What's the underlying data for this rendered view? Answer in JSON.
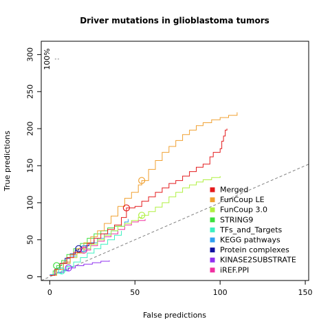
{
  "chart_data": {
    "type": "line",
    "title": "Driver mutations in glioblastoma tumors",
    "xlabel": "False predictions",
    "ylabel": "True predictions",
    "xlim": [
      -5,
      152
    ],
    "ylim": [
      -5,
      318
    ],
    "x_ticks": [
      "0",
      "50",
      "100",
      "150"
    ],
    "y_ticks": [
      "0",
      "50",
      "100",
      "150",
      "200",
      "250",
      "300"
    ],
    "annotation": "100%",
    "legend": {
      "placement": "right"
    },
    "diagonal": {
      "color": "#808080",
      "dash": true
    },
    "series": [
      {
        "name": "Merged",
        "color": "#e41a1c",
        "marker": [
          45,
          93
        ],
        "points": [
          [
            0,
            2
          ],
          [
            3,
            10
          ],
          [
            6,
            18
          ],
          [
            10,
            26
          ],
          [
            14,
            33
          ],
          [
            18,
            40
          ],
          [
            22,
            45
          ],
          [
            26,
            52
          ],
          [
            30,
            58
          ],
          [
            34,
            64
          ],
          [
            38,
            70
          ],
          [
            42,
            80
          ],
          [
            45,
            93
          ],
          [
            50,
            95
          ],
          [
            54,
            102
          ],
          [
            58,
            108
          ],
          [
            62,
            114
          ],
          [
            66,
            120
          ],
          [
            70,
            126
          ],
          [
            74,
            130
          ],
          [
            78,
            136
          ],
          [
            82,
            142
          ],
          [
            86,
            148
          ],
          [
            90,
            152
          ],
          [
            94,
            162
          ],
          [
            96,
            168
          ],
          [
            100,
            173
          ],
          [
            101,
            183
          ],
          [
            102,
            190
          ],
          [
            103,
            198
          ],
          [
            104,
            200
          ]
        ]
      },
      {
        "name": "FunCoup LE",
        "color": "#f0a030",
        "marker": [
          54,
          130
        ],
        "points": [
          [
            0,
            2
          ],
          [
            4,
            10
          ],
          [
            8,
            20
          ],
          [
            12,
            30
          ],
          [
            16,
            38
          ],
          [
            20,
            46
          ],
          [
            24,
            54
          ],
          [
            28,
            62
          ],
          [
            32,
            72
          ],
          [
            36,
            82
          ],
          [
            40,
            95
          ],
          [
            44,
            106
          ],
          [
            48,
            114
          ],
          [
            52,
            124
          ],
          [
            54,
            130
          ],
          [
            58,
            145
          ],
          [
            62,
            157
          ],
          [
            66,
            168
          ],
          [
            70,
            176
          ],
          [
            74,
            184
          ],
          [
            78,
            192
          ],
          [
            82,
            198
          ],
          [
            86,
            204
          ],
          [
            90,
            208
          ],
          [
            95,
            212
          ],
          [
            100,
            215
          ],
          [
            105,
            218
          ],
          [
            110,
            222
          ]
        ]
      },
      {
        "name": "FunCoup 3.0",
        "color": "#b0f040",
        "marker": [
          54,
          83
        ],
        "points": [
          [
            0,
            2
          ],
          [
            4,
            10
          ],
          [
            8,
            18
          ],
          [
            12,
            26
          ],
          [
            16,
            32
          ],
          [
            20,
            38
          ],
          [
            24,
            44
          ],
          [
            28,
            50
          ],
          [
            32,
            56
          ],
          [
            36,
            62
          ],
          [
            40,
            68
          ],
          [
            44,
            72
          ],
          [
            48,
            76
          ],
          [
            52,
            80
          ],
          [
            54,
            83
          ],
          [
            58,
            88
          ],
          [
            62,
            94
          ],
          [
            66,
            100
          ],
          [
            70,
            108
          ],
          [
            74,
            114
          ],
          [
            78,
            120
          ],
          [
            82,
            124
          ],
          [
            86,
            128
          ],
          [
            90,
            131
          ],
          [
            95,
            134
          ],
          [
            100,
            136
          ]
        ]
      },
      {
        "name": "STRING9",
        "color": "#3ce03c",
        "marker": [
          4,
          15
        ],
        "points": [
          [
            0,
            2
          ],
          [
            2,
            8
          ],
          [
            4,
            15
          ],
          [
            7,
            22
          ],
          [
            10,
            30
          ],
          [
            14,
            38
          ],
          [
            18,
            45
          ],
          [
            22,
            52
          ],
          [
            26,
            58
          ],
          [
            30,
            62
          ],
          [
            34,
            66
          ],
          [
            38,
            68
          ],
          [
            42,
            70
          ]
        ]
      },
      {
        "name": "TFs_and_Targets",
        "color": "#3cf0c0",
        "marker": [
          7,
          8
        ],
        "points": [
          [
            0,
            2
          ],
          [
            3,
            5
          ],
          [
            7,
            8
          ],
          [
            10,
            14
          ],
          [
            14,
            20
          ],
          [
            18,
            26
          ],
          [
            22,
            32
          ],
          [
            26,
            38
          ],
          [
            30,
            44
          ],
          [
            34,
            50
          ],
          [
            38,
            56
          ],
          [
            42,
            62
          ]
        ]
      },
      {
        "name": "KEGG pathways",
        "color": "#30a0f0",
        "marker": [
          20,
          38
        ],
        "points": [
          [
            0,
            3
          ],
          [
            4,
            12
          ],
          [
            8,
            20
          ],
          [
            12,
            28
          ],
          [
            16,
            34
          ],
          [
            20,
            38
          ],
          [
            24,
            46
          ],
          [
            28,
            52
          ],
          [
            32,
            58
          ],
          [
            36,
            62
          ],
          [
            40,
            68
          ],
          [
            44,
            74
          ],
          [
            46,
            78
          ]
        ]
      },
      {
        "name": "Protein complexes",
        "color": "#1010a0",
        "marker": [
          17,
          38
        ],
        "points": [
          [
            0,
            2
          ],
          [
            3,
            10
          ],
          [
            6,
            18
          ],
          [
            9,
            25
          ],
          [
            12,
            31
          ],
          [
            15,
            36
          ],
          [
            17,
            38
          ],
          [
            20,
            42
          ],
          [
            23,
            46
          ],
          [
            26,
            50
          ]
        ]
      },
      {
        "name": "KINASE2SUBSTRATE",
        "color": "#9030f0",
        "marker": [
          11,
          12
        ],
        "points": [
          [
            0,
            2
          ],
          [
            4,
            6
          ],
          [
            8,
            9
          ],
          [
            11,
            12
          ],
          [
            15,
            15
          ],
          [
            20,
            17
          ],
          [
            25,
            19
          ],
          [
            30,
            21
          ],
          [
            35,
            22
          ]
        ]
      },
      {
        "name": "iREF.PPI",
        "color": "#f030a0",
        "marker": [
          20,
          36
        ],
        "points": [
          [
            0,
            2
          ],
          [
            4,
            10
          ],
          [
            8,
            18
          ],
          [
            12,
            26
          ],
          [
            16,
            32
          ],
          [
            20,
            36
          ],
          [
            24,
            42
          ],
          [
            28,
            48
          ],
          [
            32,
            54
          ],
          [
            36,
            58
          ],
          [
            40,
            64
          ],
          [
            44,
            70
          ],
          [
            48,
            74
          ],
          [
            52,
            76
          ],
          [
            56,
            78
          ]
        ]
      }
    ]
  }
}
